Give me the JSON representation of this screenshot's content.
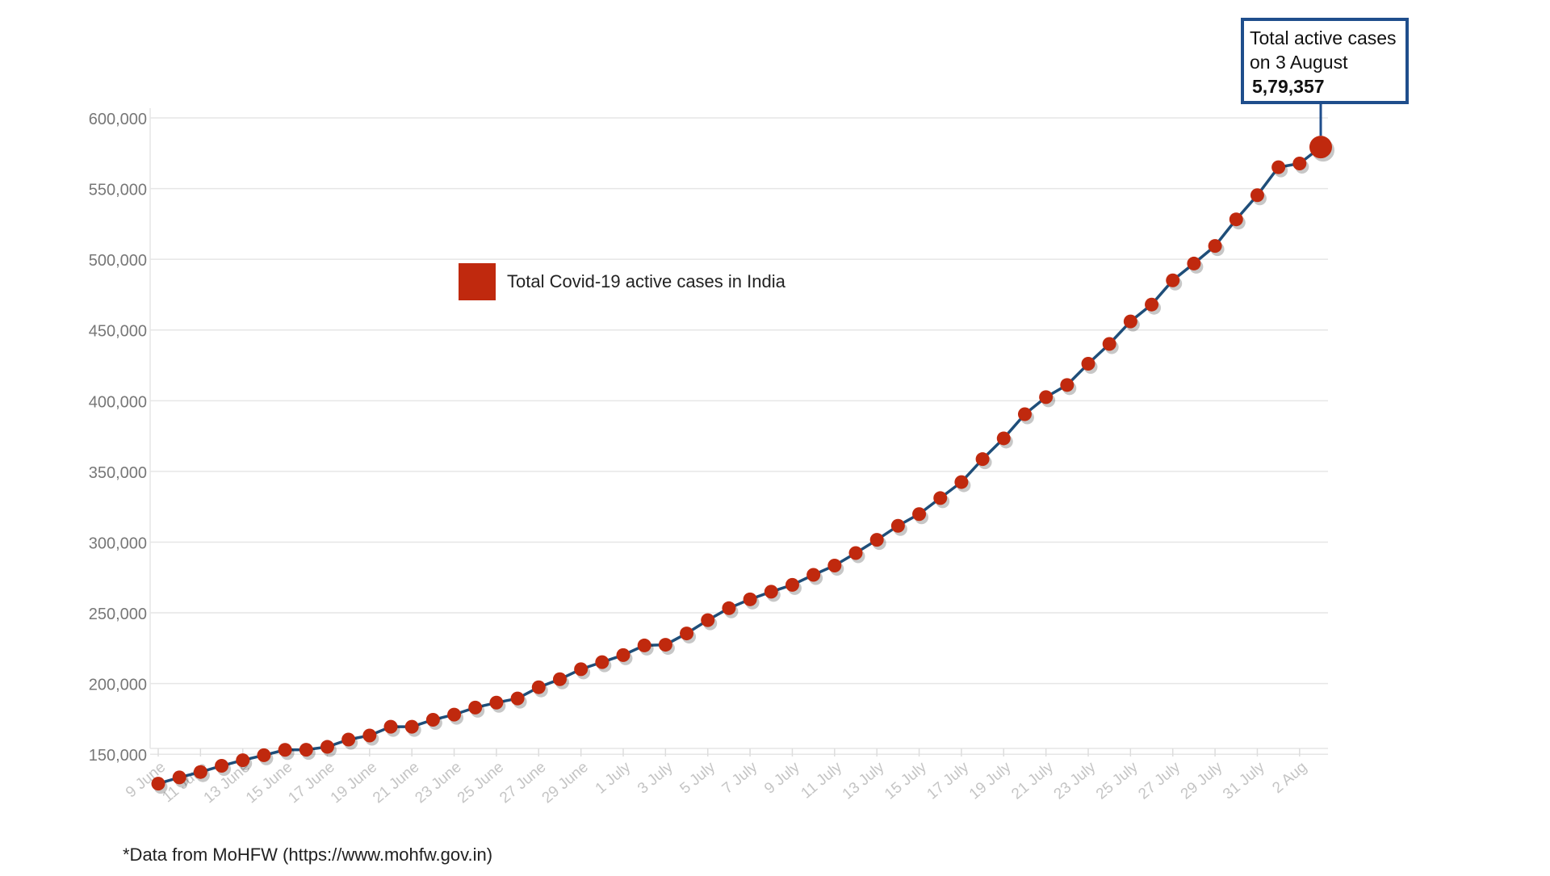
{
  "chart_data": {
    "type": "line",
    "series": [
      {
        "name": "Total Covid-19 active cases in India",
        "color": "#c0290e",
        "line_color": "#1f4e79",
        "values": [
          129215,
          133632,
          137448,
          141842,
          145779,
          149348,
          153106,
          153178,
          155227,
          160384,
          163248,
          169451,
          169451,
          174387,
          178014,
          183022,
          186514,
          189463,
          197387,
          203051,
          210120,
          215125,
          220114,
          226947,
          227439,
          235433,
          244814,
          253287,
          259557,
          264944,
          269789,
          276882,
          283407,
          292258,
          301609,
          311565,
          319840,
          331146,
          342473,
          358692,
          373379,
          390459,
          402529,
          411133,
          426167,
          440135,
          456071,
          468002,
          485114,
          496988,
          509447,
          528242,
          545318,
          565103,
          567730,
          579357
        ]
      }
    ],
    "x_tick_labels": [
      "9 June",
      "11 June",
      "13 June",
      "15 June",
      "17 June",
      "19 June",
      "21 June",
      "23 June",
      "25 June",
      "27 June",
      "29 June",
      "1 July",
      "3 July",
      "5 July",
      "7 July",
      "9 July",
      "11 July",
      "13 July",
      "15 July",
      "17 July",
      "19 July",
      "21 July",
      "23 July",
      "25 July",
      "27 July",
      "29 July",
      "31 July",
      "2 Aug"
    ],
    "y_ticks": [
      "150,000",
      "200,000",
      "250,000",
      "300,000",
      "350,000",
      "400,000",
      "450,000",
      "500,000",
      "550,000",
      "600,000"
    ],
    "y_tick_values": [
      150000,
      200000,
      250000,
      300000,
      350000,
      400000,
      450000,
      500000,
      550000,
      600000
    ],
    "ylim": [
      125000,
      600000
    ],
    "grid": true,
    "legend": {
      "label": "Total Covid-19 active cases in India",
      "position": "upper-middle"
    },
    "callout": {
      "line1": "Total active cases",
      "line2": "on 3 August",
      "value": "5,79,357"
    },
    "source_note": "*Data from MoHFW (https://www.mohfw.gov.in)"
  }
}
